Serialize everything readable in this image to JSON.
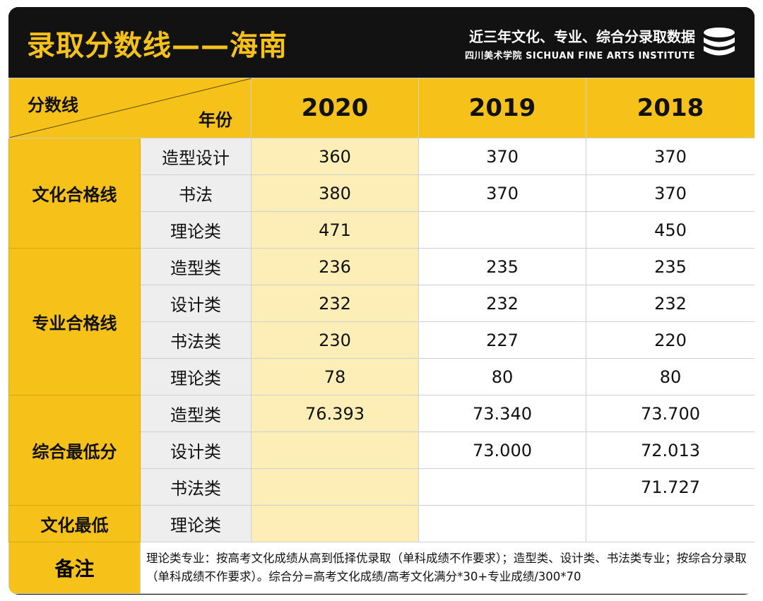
{
  "header": {
    "title": "录取分数线——海南",
    "subtitle": "近三年文化、专业、综合分录取数据",
    "institute": "四川美术学院 SICHUAN FINE ARTS INSTITUTE",
    "icon": "database-icon"
  },
  "table": {
    "corner_top": "分数线",
    "corner_bottom": "年份",
    "years": [
      "2020",
      "2019",
      "2018"
    ],
    "groups": [
      {
        "label": "文化合格线",
        "rows": [
          {
            "sub": "造型设计",
            "values": [
              "360",
              "370",
              "370"
            ]
          },
          {
            "sub": "书法",
            "values": [
              "380",
              "370",
              "370"
            ]
          },
          {
            "sub": "理论类",
            "values": [
              "471",
              "",
              "450"
            ]
          }
        ]
      },
      {
        "label": "专业合格线",
        "rows": [
          {
            "sub": "造型类",
            "values": [
              "236",
              "235",
              "235"
            ]
          },
          {
            "sub": "设计类",
            "values": [
              "232",
              "232",
              "232"
            ]
          },
          {
            "sub": "书法类",
            "values": [
              "230",
              "227",
              "220"
            ]
          },
          {
            "sub": "理论类",
            "values": [
              "78",
              "80",
              "80"
            ]
          }
        ]
      },
      {
        "label": "综合最低分",
        "rows": [
          {
            "sub": "造型类",
            "values": [
              "76.393",
              "73.340",
              "73.700"
            ]
          },
          {
            "sub": "设计类",
            "values": [
              "",
              "73.000",
              "72.013"
            ]
          },
          {
            "sub": "书法类",
            "values": [
              "",
              "",
              "71.727"
            ]
          }
        ]
      },
      {
        "label": "文化最低",
        "rows": [
          {
            "sub": "理论类",
            "values": [
              "",
              "",
              ""
            ]
          }
        ]
      }
    ],
    "note_label": "备注",
    "note_text": "理论类专业：按高考文化成绩从高到低择优录取（单科成绩不作要求）；造型类、设计类、书法类专业；按综合分录取（单科成绩不作要求）。综合分=高考文化成绩/高考文化满分*30+专业成绩/300*70"
  },
  "colors": {
    "accent": "#f6c21a",
    "header_bg": "#121212",
    "year2020_bg": "#fdedb6",
    "sub_bg": "#eeeeee"
  }
}
